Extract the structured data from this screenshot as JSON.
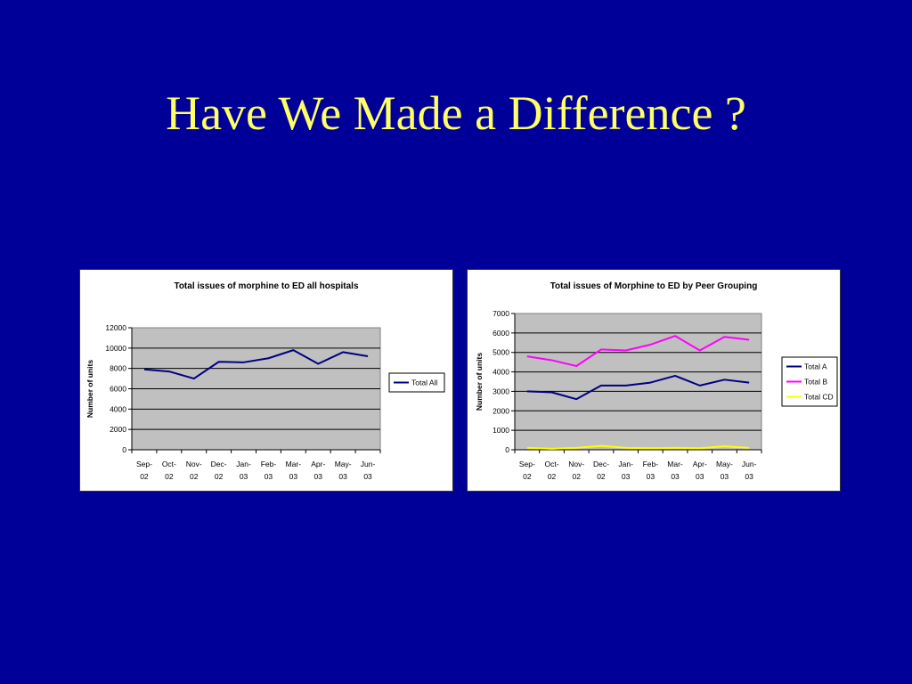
{
  "slide": {
    "title": "Have We Made a Difference ?",
    "background": "#000099",
    "title_color": "#FFFF66"
  },
  "chart_data": [
    {
      "type": "line",
      "title": "Total issues of morphine to ED all hospitals",
      "xlabel": "",
      "ylabel": "Number of units",
      "categories": [
        [
          "Sep-",
          "02"
        ],
        [
          "Oct-",
          "02"
        ],
        [
          "Nov-",
          "02"
        ],
        [
          "Dec-",
          "02"
        ],
        [
          "Jan-",
          "03"
        ],
        [
          "Feb-",
          "03"
        ],
        [
          "Mar-",
          "03"
        ],
        [
          "Apr-",
          "03"
        ],
        [
          "May-",
          "03"
        ],
        [
          "Jun-",
          "03"
        ]
      ],
      "ylim": [
        0,
        12000
      ],
      "yticks": [
        0,
        2000,
        4000,
        6000,
        8000,
        10000,
        12000
      ],
      "grid": true,
      "plot_bg": "#C0C0C0",
      "legend_position": "right",
      "series": [
        {
          "name": "Total All",
          "color": "#000080",
          "values": [
            7900,
            7700,
            7000,
            8650,
            8600,
            9000,
            9800,
            8450,
            9600,
            9200
          ]
        }
      ]
    },
    {
      "type": "line",
      "title": "Total issues of Morphine to ED by Peer Grouping",
      "xlabel": "",
      "ylabel": "Number of units",
      "categories": [
        [
          "Sep-",
          "02"
        ],
        [
          "Oct-",
          "02"
        ],
        [
          "Nov-",
          "02"
        ],
        [
          "Dec-",
          "02"
        ],
        [
          "Jan-",
          "03"
        ],
        [
          "Feb-",
          "03"
        ],
        [
          "Mar-",
          "03"
        ],
        [
          "Apr-",
          "03"
        ],
        [
          "May-",
          "03"
        ],
        [
          "Jun-",
          "03"
        ]
      ],
      "ylim": [
        0,
        7000
      ],
      "yticks": [
        0,
        1000,
        2000,
        3000,
        4000,
        5000,
        6000,
        7000
      ],
      "grid": true,
      "plot_bg": "#C0C0C0",
      "legend_position": "right",
      "series": [
        {
          "name": "Total A",
          "color": "#000080",
          "values": [
            3000,
            2950,
            2600,
            3300,
            3300,
            3450,
            3800,
            3300,
            3600,
            3450
          ]
        },
        {
          "name": "Total B",
          "color": "#FF00FF",
          "values": [
            4800,
            4600,
            4300,
            5150,
            5100,
            5400,
            5850,
            5100,
            5800,
            5650
          ]
        },
        {
          "name": "Total CD",
          "color": "#FFFF00",
          "values": [
            100,
            50,
            100,
            200,
            100,
            80,
            100,
            80,
            180,
            100
          ]
        }
      ]
    }
  ]
}
